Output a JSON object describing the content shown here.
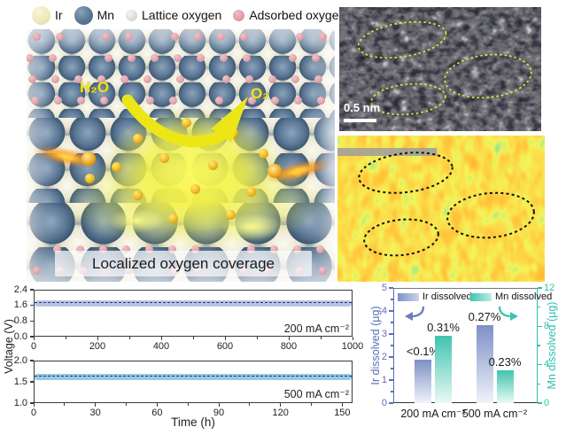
{
  "sphere_legend": {
    "items": [
      {
        "label": "Ir",
        "hi": "#f8f4d8",
        "mid": "#efe9bd",
        "lo": "#ddd49c",
        "size": 21
      },
      {
        "label": "Mn",
        "hi": "#8aa2ba",
        "mid": "#5b7795",
        "lo": "#41607e",
        "size": 21
      },
      {
        "label": "Lattice oxygen",
        "hi": "#f4f4f2",
        "mid": "#dddddb",
        "lo": "#c6c6c2",
        "size": 13
      },
      {
        "label": "Adsorbed oxygen",
        "hi": "#f0bcc2",
        "mid": "#e0a0aa",
        "lo": "#c9858f",
        "size": 13
      }
    ]
  },
  "illustration": {
    "reactant_label": "H₂O",
    "product_label": "O₂",
    "caption": "Localized oxygen coverage",
    "glow_color": "#f2ef3e",
    "arrow_color": "#ece617"
  },
  "stem_panel": {
    "scale_bar_label": "0.5 nm",
    "ellipse_color": "#e4e43a"
  },
  "topography_panel": {
    "ellipse_color": "#111111"
  },
  "chart_data": [
    {
      "type": "line",
      "panel": "chronopotentiometry-200",
      "ylabel": "Voltage (V)",
      "annotation": "200 mA cm⁻²",
      "mean_voltage": 1.72,
      "xlim": [
        0,
        1000
      ],
      "xticks": [
        "0",
        "200",
        "400",
        "600",
        "800",
        "1000"
      ],
      "ylim": [
        0,
        2.4
      ],
      "yticks": [
        "0.0",
        "0.8",
        "1.6",
        "2.4"
      ],
      "band_color": "#b9c3e6",
      "line_color": "#233a72",
      "line_style": "dashed"
    },
    {
      "type": "line",
      "panel": "chronopotentiometry-500",
      "xlabel": "Time (h)",
      "annotation": "500 mA cm⁻²",
      "mean_voltage": 1.62,
      "xlim": [
        0,
        155
      ],
      "xticks": [
        "0",
        "30",
        "60",
        "90",
        "120",
        "150"
      ],
      "ylim": [
        1.0,
        2.0
      ],
      "yticks": [
        "1.0",
        "1.5",
        "2.0"
      ],
      "band_color": "#96c8e8",
      "line_color": "#1d3a5e",
      "line_style": "dashed"
    },
    {
      "type": "bar",
      "panel": "metal-dissolution",
      "categories": [
        "200 mA cm⁻²",
        "500 mA cm⁻²"
      ],
      "series": [
        {
          "name": "Ir dissolved",
          "axis": "left",
          "values": [
            1.9,
            3.4
          ],
          "bar_labels": [
            "<0.1%",
            "0.27%"
          ],
          "color_top": "#7d90c7",
          "color_bottom": "#f1f3fa"
        },
        {
          "name": "Mn dissolved",
          "axis": "right",
          "values": [
            7.0,
            3.4
          ],
          "bar_labels": [
            "0.31%",
            "0.23%"
          ],
          "color_top": "#3fc4ae",
          "color_bottom": "#eaf9f6"
        }
      ],
      "left_axis": {
        "label": "Ir dissolved (µg)",
        "ylim": [
          0,
          5
        ],
        "ticks": [
          "0",
          "1",
          "2",
          "3",
          "4",
          "5"
        ],
        "color": "#5a6fb5"
      },
      "right_axis": {
        "label": "Mn dissolved (µg)",
        "ylim": [
          0,
          12
        ],
        "ticks": [
          "0",
          "4",
          "8",
          "12"
        ],
        "color": "#2fbfae"
      }
    }
  ]
}
